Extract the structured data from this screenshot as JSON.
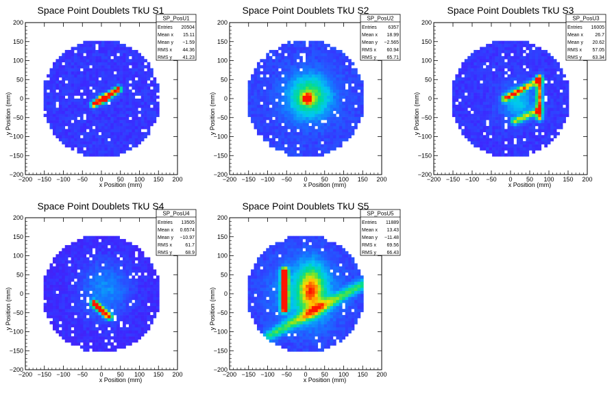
{
  "chart_data": [
    {
      "type": "heatmap",
      "title": "Space Point Doublets TkU S1",
      "xlabel": "x Position (mm)",
      "ylabel": "y Position (mm)",
      "xlim": [
        -200,
        200
      ],
      "ylim": [
        -200,
        200
      ],
      "xticks": [
        "−200",
        "−150",
        "−100",
        "−50",
        "0",
        "50",
        "100",
        "150",
        "200"
      ],
      "yticks": [
        "200",
        "150",
        "100",
        "50",
        "0",
        "−50",
        "−100",
        "−150",
        "−200"
      ],
      "stats": {
        "name": "SP_PosU1",
        "rows": [
          [
            "Entries",
            "20504"
          ],
          [
            "Mean x",
            "15.11"
          ],
          [
            "Mean y",
            "−1.59"
          ],
          [
            "RMS x",
            "44.36"
          ],
          [
            "RMS y",
            "41.23"
          ]
        ]
      },
      "hotspots": [
        {
          "shape": "line",
          "x1": -20,
          "y1": -15,
          "x2": 45,
          "y2": 25,
          "peak": 1.0,
          "w": 6
        },
        {
          "shape": "blob",
          "cx": 5,
          "cy": -2,
          "sx": 10,
          "sy": 8,
          "peak": 0.55
        }
      ],
      "base": 0.15
    },
    {
      "type": "heatmap",
      "title": "Space Point Doublets TkU S2",
      "xlabel": "x Position (mm)",
      "ylabel": "y Position (mm)",
      "xlim": [
        -200,
        200
      ],
      "ylim": [
        -200,
        200
      ],
      "xticks": [
        "−200",
        "−150",
        "−100",
        "−50",
        "0",
        "50",
        "100",
        "150",
        "200"
      ],
      "yticks": [
        "200",
        "150",
        "100",
        "50",
        "0",
        "−50",
        "−100",
        "−150",
        "−200"
      ],
      "stats": {
        "name": "SP_PosU2",
        "rows": [
          [
            "Entries",
            "6357"
          ],
          [
            "Mean x",
            "18.99"
          ],
          [
            "Mean y",
            "−2.565"
          ],
          [
            "RMS x",
            "60.94"
          ],
          [
            "RMS y",
            "65.71"
          ]
        ]
      },
      "hotspots": [
        {
          "shape": "blob",
          "cx": 10,
          "cy": 5,
          "sx": 40,
          "sy": 40,
          "peak": 0.55
        },
        {
          "shape": "blob",
          "cx": 5,
          "cy": 0,
          "sx": 8,
          "sy": 8,
          "peak": 0.85
        }
      ],
      "base": 0.18
    },
    {
      "type": "heatmap",
      "title": "Space Point Doublets TkU S3",
      "xlabel": "x Position (mm)",
      "ylabel": "y Position (mm)",
      "xlim": [
        -200,
        200
      ],
      "ylim": [
        -200,
        200
      ],
      "xticks": [
        "−200",
        "−150",
        "−100",
        "−50",
        "0",
        "50",
        "100",
        "150",
        "200"
      ],
      "yticks": [
        "200",
        "150",
        "100",
        "50",
        "0",
        "−50",
        "−100",
        "−150",
        "−200"
      ],
      "stats": {
        "name": "SP_PosU3",
        "rows": [
          [
            "Entries",
            "16005"
          ],
          [
            "Mean x",
            "26.7"
          ],
          [
            "Mean y",
            "20.62"
          ],
          [
            "RMS x",
            "57.05"
          ],
          [
            "RMS y",
            "63.34"
          ]
        ]
      },
      "hotspots": [
        {
          "shape": "line",
          "x1": -15,
          "y1": 0,
          "x2": 75,
          "y2": 50,
          "peak": 0.7,
          "w": 6
        },
        {
          "shape": "line",
          "x1": 75,
          "y1": 55,
          "x2": 75,
          "y2": -50,
          "peak": 0.75,
          "w": 6
        },
        {
          "shape": "line",
          "x1": 10,
          "y1": -60,
          "x2": 75,
          "y2": -30,
          "peak": 0.55,
          "w": 6
        },
        {
          "shape": "blob",
          "cx": 20,
          "cy": -10,
          "sx": 30,
          "sy": 30,
          "peak": 0.3
        }
      ],
      "base": 0.15
    },
    {
      "type": "heatmap",
      "title": "Space Point Doublets TkU S4",
      "xlabel": "x Position (mm)",
      "ylabel": "y Position (mm)",
      "xlim": [
        -200,
        200
      ],
      "ylim": [
        -200,
        200
      ],
      "xticks": [
        "−200",
        "−150",
        "−100",
        "−50",
        "0",
        "50",
        "100",
        "150",
        "200"
      ],
      "yticks": [
        "200",
        "150",
        "100",
        "50",
        "0",
        "−50",
        "−100",
        "−150",
        "−200"
      ],
      "stats": {
        "name": "SP_PosU4",
        "rows": [
          [
            "Entries",
            "13505"
          ],
          [
            "Mean x",
            "0.6574"
          ],
          [
            "Mean y",
            "−10.97"
          ],
          [
            "RMS x",
            "61.7"
          ],
          [
            "RMS y",
            "68.9"
          ]
        ]
      },
      "hotspots": [
        {
          "shape": "line",
          "x1": -20,
          "y1": -25,
          "x2": 20,
          "y2": -60,
          "peak": 1.0,
          "w": 6
        },
        {
          "shape": "blob",
          "cx": 10,
          "cy": 10,
          "sx": 45,
          "sy": 50,
          "peak": 0.22
        }
      ],
      "base": 0.12
    },
    {
      "type": "heatmap",
      "title": "Space Point Doublets TkU S5",
      "xlabel": "x Position (mm)",
      "ylabel": "y Position (mm)",
      "xlim": [
        -200,
        200
      ],
      "ylim": [
        -200,
        200
      ],
      "xticks": [
        "−200",
        "−150",
        "−100",
        "−50",
        "0",
        "50",
        "100",
        "150",
        "200"
      ],
      "yticks": [
        "200",
        "150",
        "100",
        "50",
        "0",
        "−50",
        "−100",
        "−150",
        "−200"
      ],
      "stats": {
        "name": "SP_PosU5",
        "rows": [
          [
            "Entries",
            "11889"
          ],
          [
            "Mean x",
            "13.43"
          ],
          [
            "Mean y",
            "−11.48"
          ],
          [
            "RMS x",
            "69.56"
          ],
          [
            "RMS y",
            "66.43"
          ]
        ]
      },
      "hotspots": [
        {
          "shape": "line",
          "x1": -55,
          "y1": 60,
          "x2": -55,
          "y2": -40,
          "peak": 1.0,
          "w": 7
        },
        {
          "shape": "blob",
          "cx": 15,
          "cy": 10,
          "sx": 25,
          "sy": 45,
          "peak": 0.6
        },
        {
          "shape": "line",
          "x1": -95,
          "y1": -110,
          "x2": 150,
          "y2": 25,
          "peak": 0.45,
          "w": 10
        },
        {
          "shape": "blob",
          "cx": 0,
          "cy": 0,
          "sx": 70,
          "sy": 70,
          "peak": 0.25
        }
      ],
      "base": 0.15
    }
  ]
}
